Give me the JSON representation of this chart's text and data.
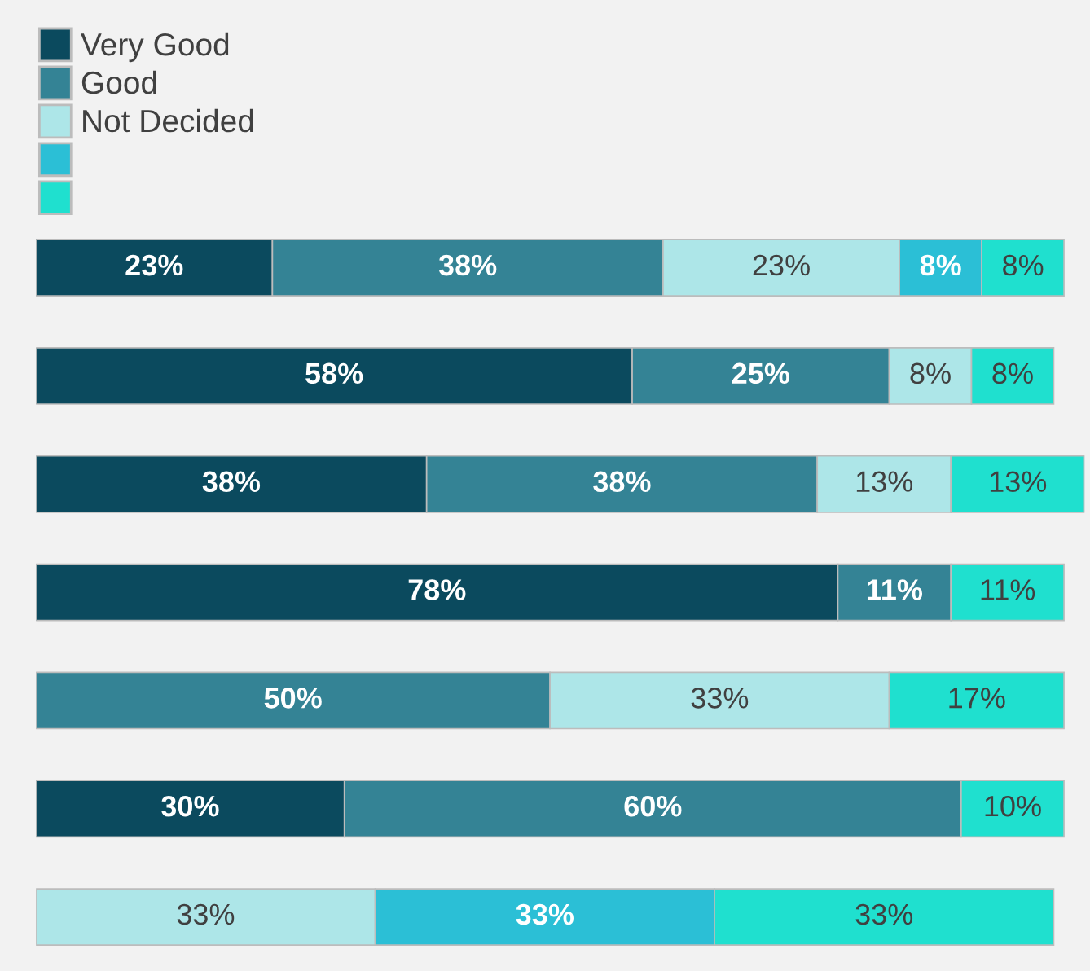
{
  "chart_data": {
    "type": "bar",
    "orientation": "horizontal",
    "stacked": true,
    "legend": "top left",
    "categories": [
      null,
      null,
      null,
      null,
      null,
      null,
      null
    ],
    "series": [
      {
        "name": "Very Good",
        "color": "#0b4a5e",
        "values": [
          23,
          58,
          38,
          78,
          null,
          30,
          null
        ],
        "value_labels": [
          "23%",
          "58%",
          "38%",
          "78%",
          null,
          "30%",
          null
        ]
      },
      {
        "name": "Good",
        "color": "#348395",
        "values": [
          38,
          25,
          38,
          11,
          50,
          60,
          null
        ],
        "value_labels": [
          "38%",
          "25%",
          "38%",
          "11%",
          "50%",
          "60%",
          null
        ]
      },
      {
        "name": "Not Decided",
        "color": "#ade6e8",
        "values": [
          23,
          8,
          13,
          null,
          33,
          null,
          33
        ],
        "value_labels": [
          "23%",
          "8%",
          "13%",
          null,
          "33%",
          null,
          "33%"
        ]
      },
      {
        "color": "#2bbfd6",
        "values": [
          8,
          null,
          null,
          null,
          null,
          null,
          33
        ],
        "value_labels": [
          "8%",
          null,
          null,
          null,
          null,
          null,
          "33%"
        ]
      },
      {
        "color": "#1fe0cf",
        "values": [
          8,
          8,
          13,
          11,
          17,
          10,
          33
        ],
        "value_labels": [
          "8%",
          "8%",
          "13%",
          "11%",
          "17%",
          "10%",
          "33%"
        ]
      }
    ]
  }
}
